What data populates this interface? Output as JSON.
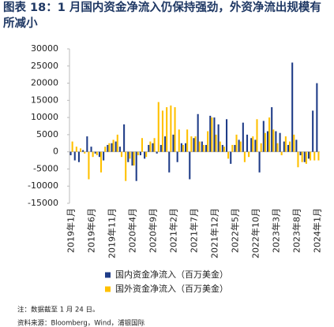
{
  "chart_data": {
    "type": "bar",
    "title": "图表 18：1 月国内资金净流入仍保持强劲，外资净流出规模有所减小",
    "note": "注：数据截至 1 月 24 日。",
    "source": "资料来源：Bloomberg，Wind，浦银国际",
    "categories": [
      "2019年1月",
      null,
      null,
      null,
      null,
      "2019年6月",
      null,
      null,
      null,
      null,
      "2019年11月",
      null,
      null,
      null,
      null,
      "2020年4月",
      null,
      null,
      null,
      null,
      "2020年9月",
      null,
      null,
      null,
      null,
      "2021年2月",
      null,
      null,
      null,
      null,
      "2021年7月",
      null,
      null,
      null,
      null,
      "2021年12月",
      null,
      null,
      null,
      null,
      "2022年5月",
      null,
      null,
      null,
      null,
      "2022年10月",
      null,
      null,
      null,
      null,
      "2023年3月",
      null,
      null,
      null,
      null,
      "2023年8月",
      null,
      null,
      null,
      null,
      "2024年1月"
    ],
    "series": [
      {
        "name": "国内资金净流入（百万美金）",
        "color": "#1f3c88",
        "values": [
          -1000,
          -2500,
          -3000,
          500,
          4500,
          1500,
          -500,
          -1500,
          -2500,
          2000,
          2500,
          3000,
          1500,
          8000,
          -3000,
          -4000,
          -8500,
          -1000,
          -2000,
          2000,
          2500,
          -500,
          2000,
          4500,
          -6000,
          5000,
          -3000,
          2500,
          2500,
          -8000,
          4000,
          11000,
          3000,
          2000,
          10500,
          10000,
          8000,
          2000,
          9500,
          -3500,
          2000,
          3500,
          8500,
          5000,
          4000,
          3500,
          -6000,
          9000,
          6000,
          13000,
          6000,
          5500,
          3000,
          2000,
          26000,
          3500,
          -1000,
          -3000,
          -2000,
          12000,
          20000
        ]
      },
      {
        "name": "国外资金净流入（百万美金）",
        "color": "#ffc000",
        "values": [
          3000,
          1500,
          1000,
          -500,
          -8000,
          -1500,
          -1000,
          -6000,
          1500,
          2500,
          3500,
          5000,
          -1500,
          -8500,
          -2000,
          -4000,
          -1000,
          4000,
          -1500,
          3000,
          4000,
          14500,
          12000,
          13000,
          13500,
          13000,
          6500,
          2000,
          6500,
          4500,
          4500,
          3000,
          2000,
          6000,
          10000,
          5000,
          3000,
          1500,
          -2000,
          2000,
          5000,
          3000,
          -3000,
          -1500,
          4500,
          9500,
          2500,
          5500,
          10000,
          6500,
          2500,
          -1000,
          4500,
          3000,
          5000,
          -4500,
          -3000,
          -3500,
          -2500,
          -2500,
          -2500
        ]
      }
    ],
    "ylim": [
      -15000,
      30000
    ],
    "yticks": [
      -15000,
      -10000,
      -5000,
      0,
      5000,
      10000,
      15000,
      20000,
      25000,
      30000
    ]
  }
}
